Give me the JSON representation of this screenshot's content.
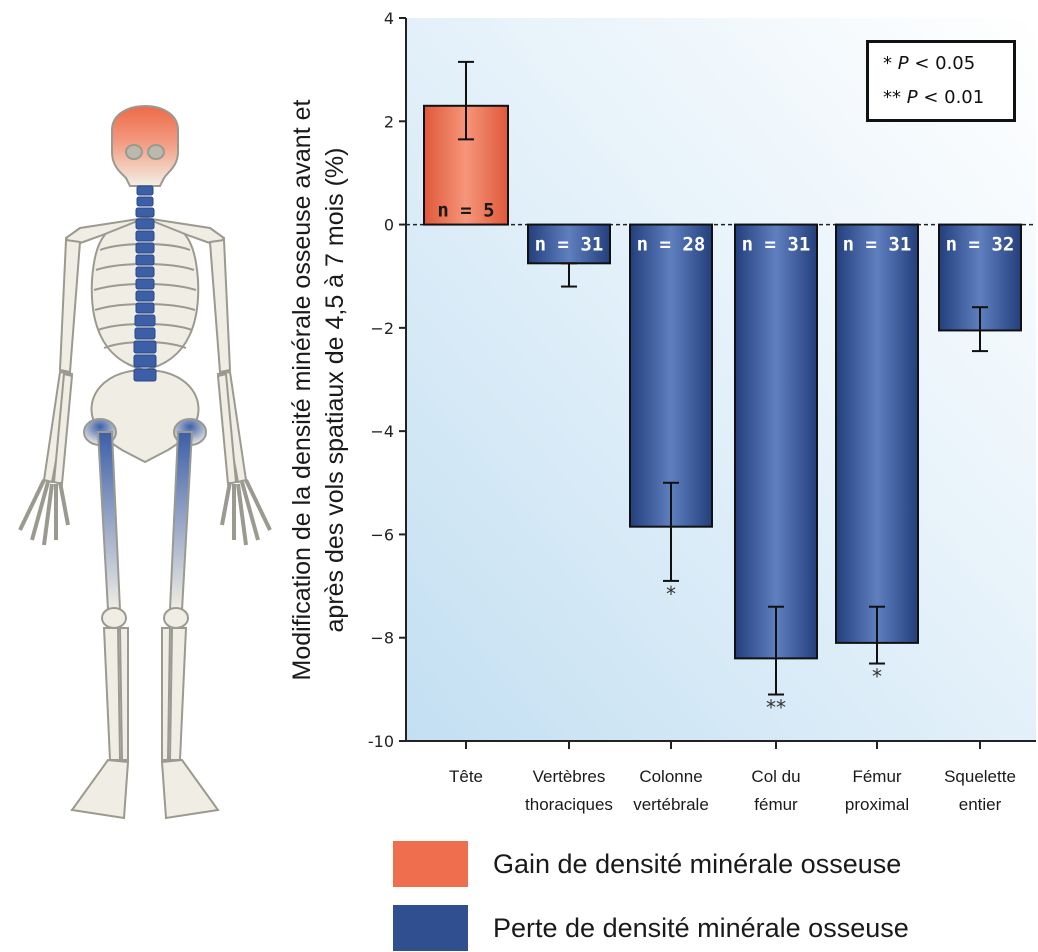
{
  "chart_data": {
    "type": "bar",
    "ylabel": "Modification de la densité minérale osseuse avant et après des vols spatiaux de 4,5 à 7 mois (%)",
    "ylabel_lines": [
      "Modification de la densité minérale osseuse avant et",
      "après des vols spatiaux de 4,5 à 7 mois (%)"
    ],
    "ylim": [
      -10,
      4
    ],
    "yticks": [
      4,
      2,
      0,
      -2,
      -4,
      -6,
      -8,
      -10
    ],
    "ytick_labels": [
      "4",
      "2",
      "0",
      "−2",
      "−4",
      "−6",
      "−8",
      "-10"
    ],
    "grid": false,
    "categories": [
      [
        "Tête"
      ],
      [
        "Vertèbres",
        "thoraciques"
      ],
      [
        "Colonne",
        "vertébrale"
      ],
      [
        "Col du",
        "fémur"
      ],
      [
        "Fémur",
        "proximal"
      ],
      [
        "Squelette",
        "entier"
      ]
    ],
    "values": [
      2.3,
      -0.75,
      -5.85,
      -8.4,
      -8.1,
      -2.05
    ],
    "error_low": [
      1.65,
      -1.2,
      -6.9,
      -9.1,
      -8.5,
      -2.45
    ],
    "error_high": [
      3.15,
      -0.75,
      -5.0,
      -7.4,
      -7.4,
      -1.6
    ],
    "n_labels": [
      "n = 5",
      "n = 31",
      "n = 28",
      "n = 31",
      "n = 31",
      "n = 32"
    ],
    "significance": [
      "",
      "",
      "*",
      "**",
      "*",
      ""
    ],
    "series": [
      {
        "name": "Gain de densité minérale osseuse",
        "color": "#ee6e4e",
        "indices": [
          0
        ]
      },
      {
        "name": "Perte de densité minérale osseuse",
        "color": "#2f4f91",
        "indices": [
          1,
          2,
          3,
          4,
          5
        ]
      }
    ],
    "significance_legend": [
      {
        "stars": "*",
        "p": "P",
        "text": " < 0.05"
      },
      {
        "stars": "**",
        "p": "P",
        "text": " < 0.01"
      }
    ],
    "legend_placement": "bottom"
  },
  "colors": {
    "gain": "#ee6e4e",
    "loss": "#2f4f91",
    "background_light": "#cfe6f5",
    "skeleton_gain": "#ee7a5c",
    "skeleton_loss": "#3d5fa8"
  },
  "legend": {
    "gain_label": "Gain de densité minérale osseuse",
    "loss_label": "Perte de densité minérale osseuse"
  },
  "illustration": {
    "icon": "skeleton-illustration"
  }
}
